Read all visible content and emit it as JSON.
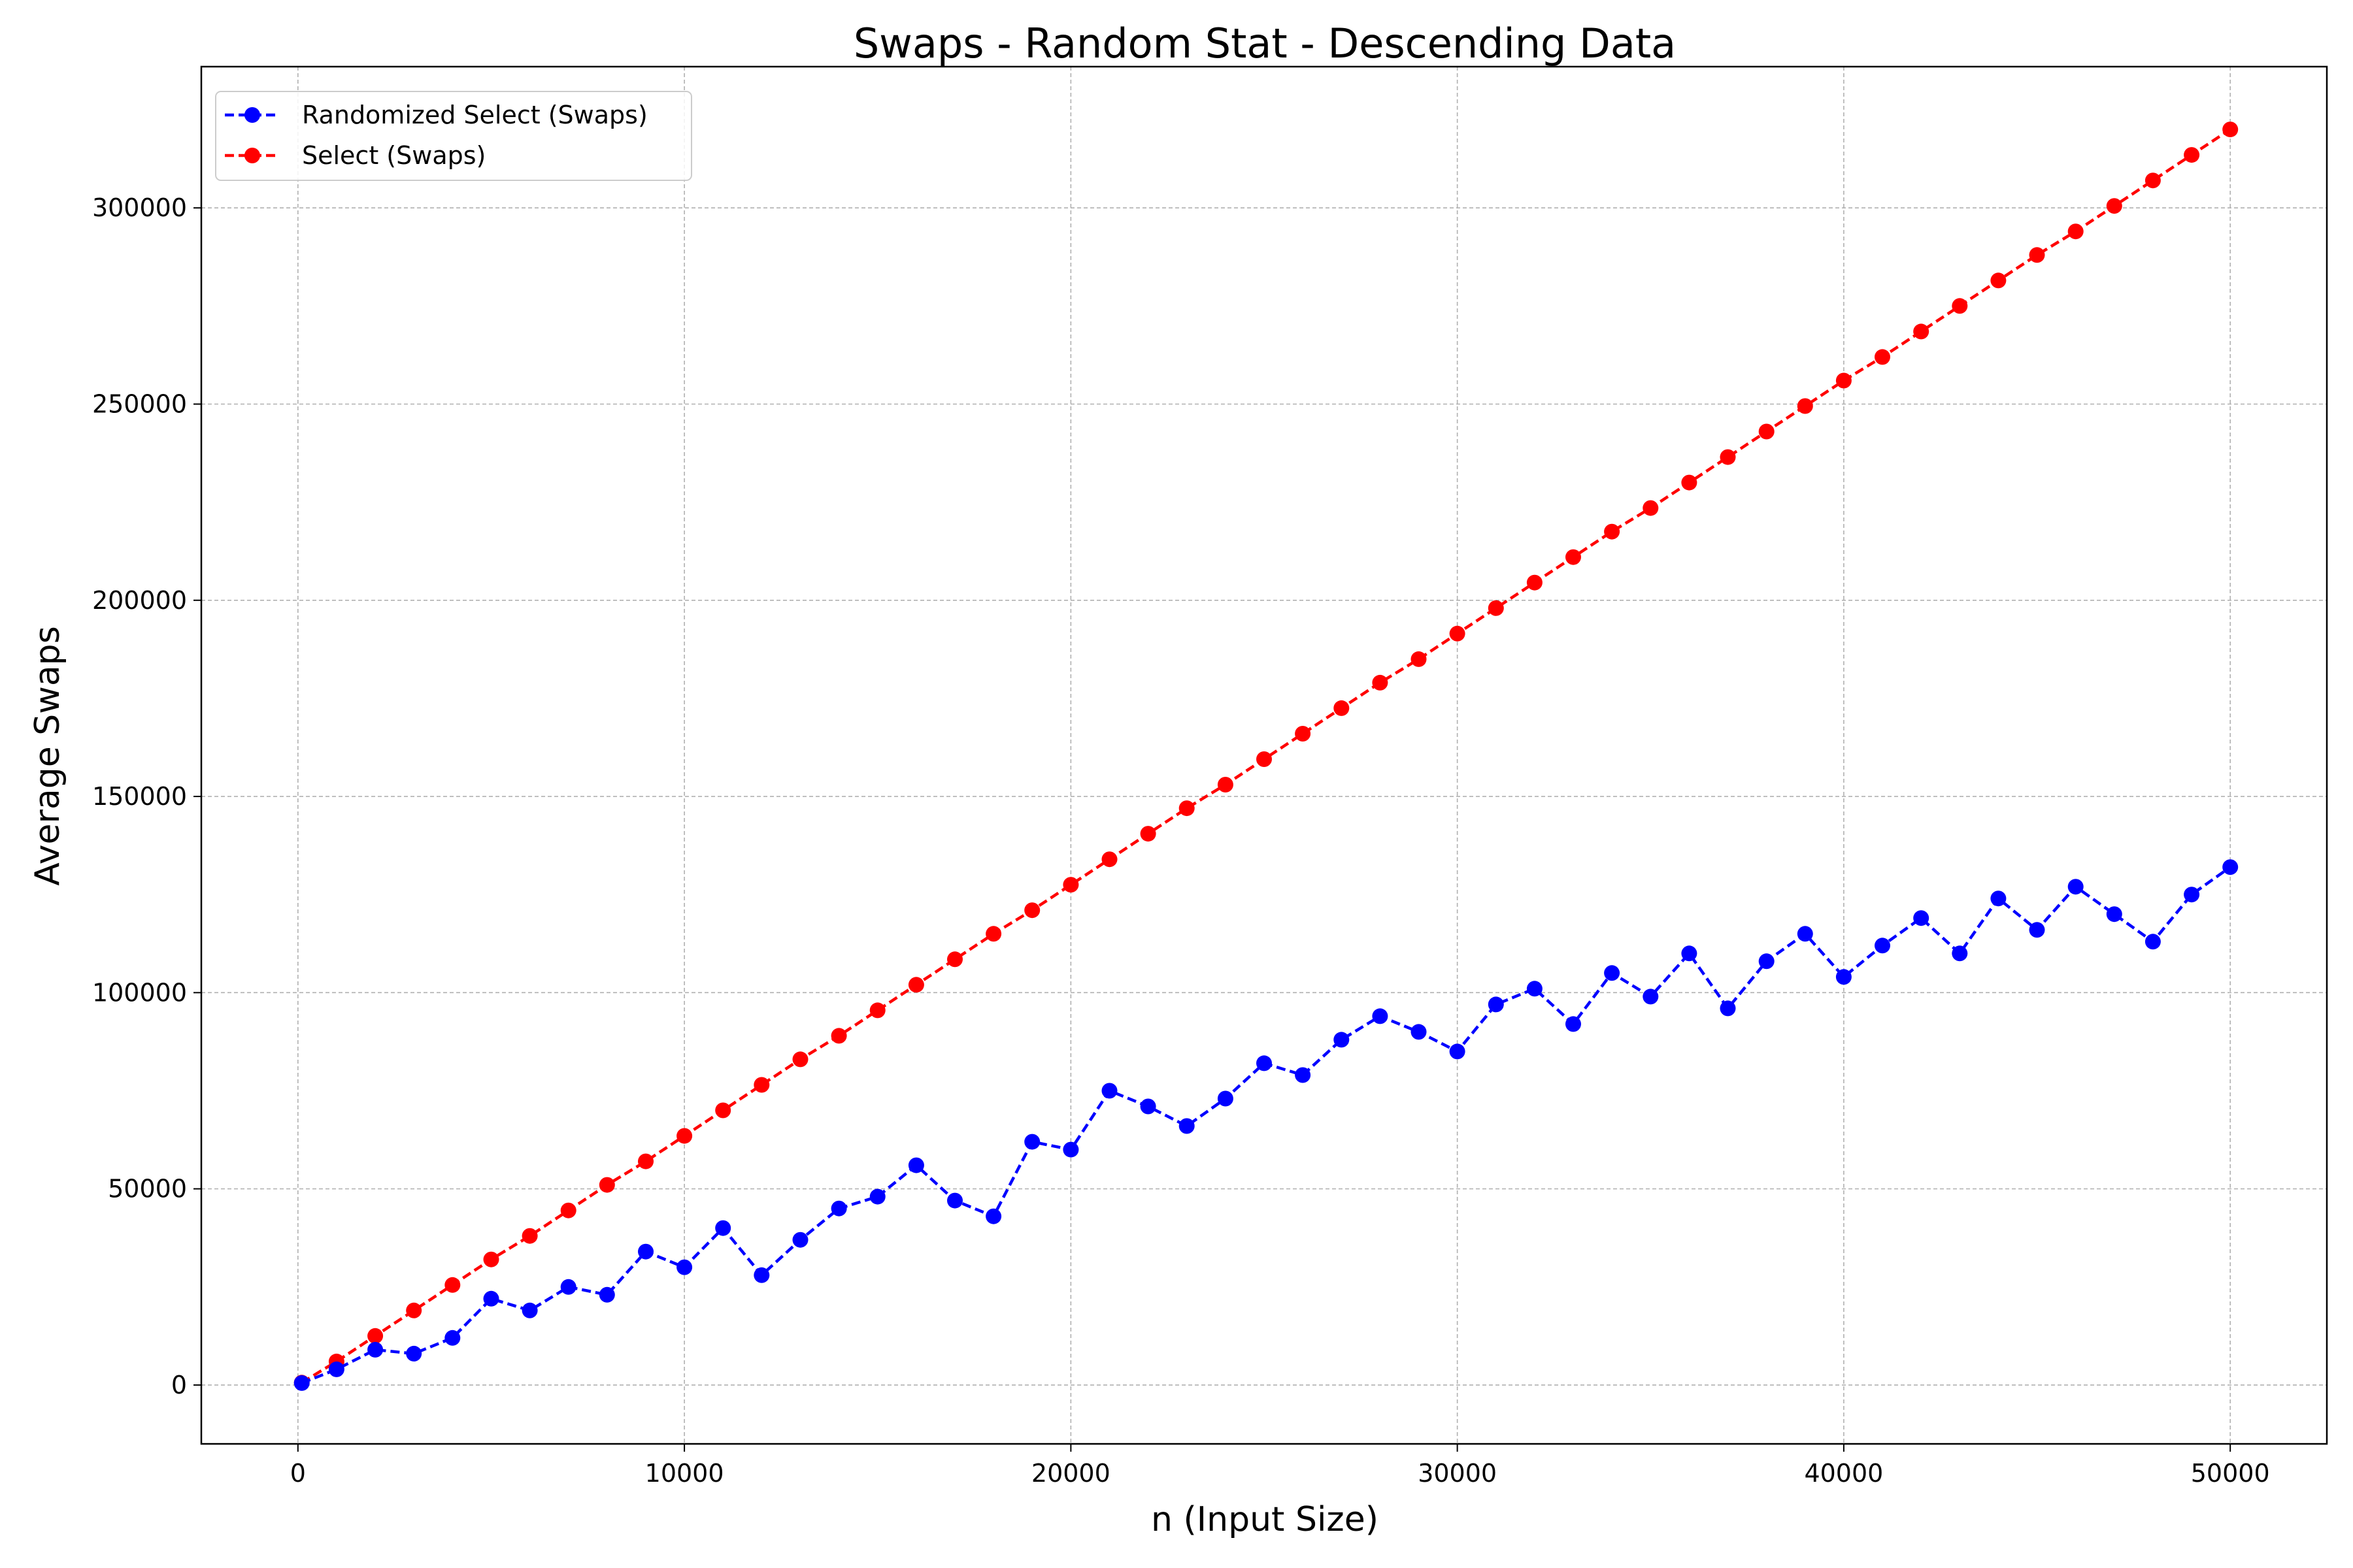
{
  "chart_data": {
    "type": "line",
    "title": "Swaps - Random Stat - Descending Data",
    "xlabel": "n (Input Size)",
    "ylabel": "Average Swaps",
    "xlim": [
      -2500,
      52500
    ],
    "ylim": [
      -15000,
      336000
    ],
    "x_ticks": [
      0,
      10000,
      20000,
      30000,
      40000,
      50000
    ],
    "y_ticks": [
      0,
      50000,
      100000,
      150000,
      200000,
      250000,
      300000
    ],
    "grid": true,
    "legend_position": "top-left",
    "series": [
      {
        "name": "Select (Swaps)",
        "color": "#ff0000",
        "line_style": "dashed",
        "marker": "circle",
        "x": [
          100,
          1000,
          2000,
          3000,
          4000,
          5000,
          6000,
          7000,
          8000,
          9000,
          10000,
          11000,
          12000,
          13000,
          14000,
          15000,
          16000,
          17000,
          18000,
          19000,
          20000,
          21000,
          22000,
          23000,
          24000,
          25000,
          26000,
          27000,
          28000,
          29000,
          30000,
          31000,
          32000,
          33000,
          34000,
          35000,
          36000,
          37000,
          38000,
          39000,
          40000,
          41000,
          42000,
          43000,
          44000,
          45000,
          46000,
          47000,
          48000,
          49000,
          50000
        ],
        "y": [
          600,
          6000,
          12500,
          19000,
          25500,
          32000,
          38000,
          44500,
          51000,
          57000,
          63500,
          70000,
          76500,
          83000,
          89000,
          95500,
          102000,
          108500,
          115000,
          121000,
          127500,
          134000,
          140500,
          147000,
          153000,
          159500,
          166000,
          172500,
          179000,
          185000,
          191500,
          198000,
          204500,
          211000,
          217500,
          223500,
          230000,
          236500,
          243000,
          249500,
          256000,
          262000,
          268500,
          275000,
          281500,
          288000,
          294000,
          300500,
          307000,
          313500,
          320000
        ]
      },
      {
        "name": "Randomized Select (Swaps)",
        "color": "#0000ff",
        "line_style": "dashed",
        "marker": "circle",
        "x": [
          100,
          1000,
          2000,
          3000,
          4000,
          5000,
          6000,
          7000,
          8000,
          9000,
          10000,
          11000,
          12000,
          13000,
          14000,
          15000,
          16000,
          17000,
          18000,
          19000,
          20000,
          21000,
          22000,
          23000,
          24000,
          25000,
          26000,
          27000,
          28000,
          29000,
          30000,
          31000,
          32000,
          33000,
          34000,
          35000,
          36000,
          37000,
          38000,
          39000,
          40000,
          41000,
          42000,
          43000,
          44000,
          45000,
          46000,
          47000,
          48000,
          49000,
          50000
        ],
        "y": [
          500,
          4000,
          9000,
          8000,
          12000,
          22000,
          19000,
          25000,
          23000,
          34000,
          30000,
          40000,
          28000,
          37000,
          45000,
          48000,
          56000,
          47000,
          43000,
          62000,
          60000,
          75000,
          71000,
          66000,
          73000,
          82000,
          79000,
          88000,
          94000,
          90000,
          85000,
          97000,
          101000,
          92000,
          105000,
          99000,
          110000,
          96000,
          108000,
          115000,
          104000,
          112000,
          119000,
          110000,
          124000,
          116000,
          127000,
          120000,
          113000,
          125000,
          132000
        ]
      }
    ]
  }
}
